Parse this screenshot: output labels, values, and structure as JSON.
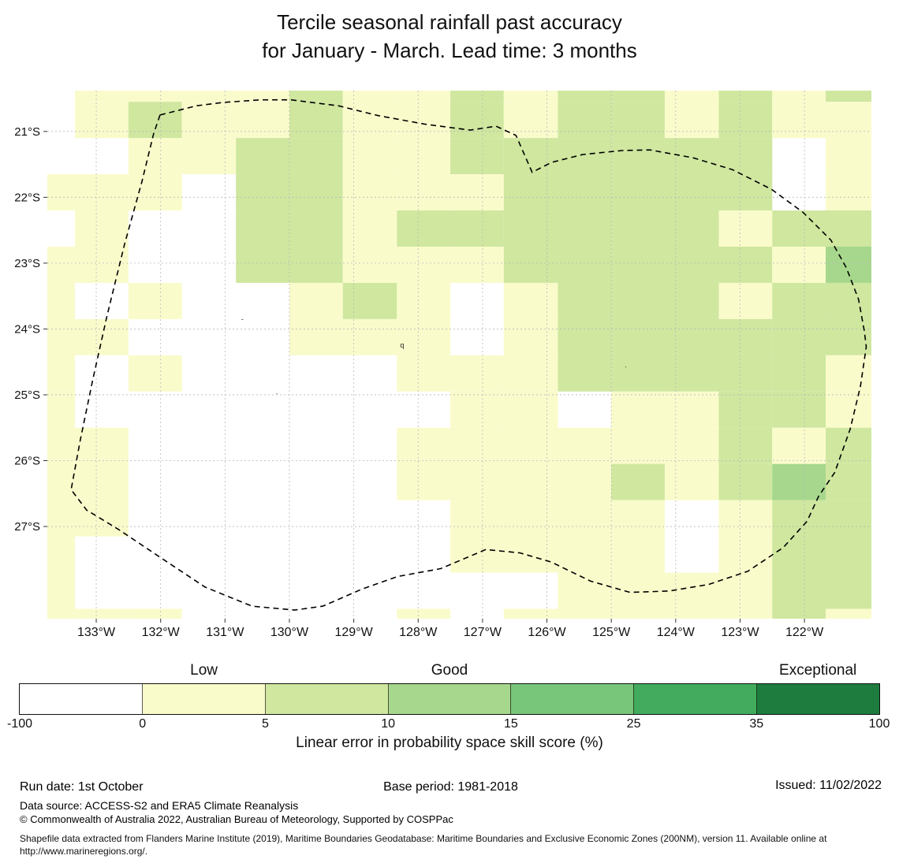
{
  "title": {
    "line1": "Tercile seasonal rainfall past accuracy",
    "line2": "for January - March. Lead time: 3 months"
  },
  "chart_data": {
    "type": "heatmap",
    "title": "Tercile seasonal rainfall past accuracy for January - March. Lead time: 3 months",
    "map": {
      "x_tick_labels": [
        "133°W",
        "132°W",
        "131°W",
        "130°W",
        "129°W",
        "128°W",
        "127°W",
        "126°W",
        "125°W",
        "124°W",
        "123°W",
        "122°W"
      ],
      "y_tick_labels": [
        "21°S",
        "22°S",
        "23°S",
        "24°S",
        "25°S",
        "26°S",
        "27°S"
      ],
      "lon_range_deg_w": [
        133.76,
        120.96
      ],
      "lat_range_deg_s": [
        20.38,
        28.4
      ],
      "grid_on": true,
      "lon_edges_deg_w": [
        133.76,
        133.33,
        132.5,
        131.67,
        130.83,
        130.0,
        129.17,
        128.33,
        127.5,
        126.67,
        125.83,
        125.0,
        124.17,
        123.33,
        122.5,
        121.67,
        120.96
      ],
      "lat_edges_deg_s": [
        20.38,
        20.55,
        21.1,
        21.65,
        22.2,
        22.75,
        23.3,
        23.85,
        24.4,
        24.95,
        25.5,
        26.05,
        26.6,
        27.15,
        27.7,
        28.25,
        28.4
      ],
      "bin_colors": [
        "#ffffff",
        "#fafbcb",
        "#cfe79f",
        "#a6d78c"
      ],
      "bin_meaning": [
        "-100 to 0 %",
        "0 to 5 %",
        "5 to 10 %",
        "10 to 15 %"
      ],
      "cell_bins_rows": [
        "0111121121221212",
        "0121121121221211",
        "0011221122222201",
        "1110221112222201",
        "0100221222222122",
        "1100221112222213",
        "1010012101222122",
        "1100011101222222",
        "1010000111222221",
        "1000000011011221",
        "1100000111111212",
        "1100000111121232",
        "1100000011110122",
        "1000000011110122",
        "1000000000111122",
        "1110000101111121"
      ],
      "eez_boundary_deg": [
        [
          132.01,
          20.75
        ],
        [
          131.44,
          20.61
        ],
        [
          131.03,
          20.56
        ],
        [
          130.46,
          20.52
        ],
        [
          129.97,
          20.52
        ],
        [
          129.24,
          20.61
        ],
        [
          128.62,
          20.76
        ],
        [
          127.89,
          20.89
        ],
        [
          127.19,
          20.98
        ],
        [
          126.79,
          20.92
        ],
        [
          126.48,
          21.06
        ],
        [
          126.23,
          21.62
        ],
        [
          125.93,
          21.47
        ],
        [
          125.44,
          21.35
        ],
        [
          124.83,
          21.29
        ],
        [
          124.4,
          21.28
        ],
        [
          123.73,
          21.4
        ],
        [
          123.12,
          21.58
        ],
        [
          122.51,
          21.88
        ],
        [
          122.02,
          22.23
        ],
        [
          121.59,
          22.65
        ],
        [
          121.35,
          23.07
        ],
        [
          121.16,
          23.55
        ],
        [
          121.07,
          24.03
        ],
        [
          121.04,
          24.27
        ],
        [
          121.13,
          24.87
        ],
        [
          121.29,
          25.52
        ],
        [
          121.53,
          26.18
        ],
        [
          121.78,
          26.54
        ],
        [
          121.96,
          26.92
        ],
        [
          122.33,
          27.32
        ],
        [
          122.88,
          27.68
        ],
        [
          123.49,
          27.88
        ],
        [
          124.1,
          27.98
        ],
        [
          124.71,
          28.0
        ],
        [
          125.32,
          27.83
        ],
        [
          125.93,
          27.54
        ],
        [
          126.42,
          27.4
        ],
        [
          126.95,
          27.35
        ],
        [
          127.65,
          27.64
        ],
        [
          128.32,
          27.76
        ],
        [
          128.87,
          27.95
        ],
        [
          129.48,
          28.21
        ],
        [
          129.92,
          28.27
        ],
        [
          130.58,
          28.21
        ],
        [
          131.31,
          27.92
        ],
        [
          132.05,
          27.44
        ],
        [
          132.66,
          27.04
        ],
        [
          133.15,
          26.75
        ],
        [
          133.39,
          26.44
        ],
        [
          133.25,
          25.7
        ],
        [
          133.05,
          24.75
        ],
        [
          132.83,
          23.79
        ],
        [
          132.56,
          22.71
        ],
        [
          132.29,
          21.76
        ],
        [
          132.11,
          21.04
        ],
        [
          132.01,
          20.75
        ]
      ],
      "stray_marks": [
        {
          "lon_w": 130.75,
          "lat_s": 23.89,
          "glyph": "-"
        },
        {
          "lon_w": 128.28,
          "lat_s": 24.28,
          "glyph": "q"
        },
        {
          "lon_w": 124.79,
          "lat_s": 24.58,
          "glyph": "."
        },
        {
          "lon_w": 130.21,
          "lat_s": 24.99,
          "glyph": "."
        }
      ]
    },
    "colorbar": {
      "label": "Linear error in probability space skill score (%)",
      "tick_labels": [
        "-100",
        "0",
        "5",
        "10",
        "15",
        "25",
        "35",
        "100"
      ],
      "category_labels": [
        {
          "text": "Low",
          "segment_index": 1
        },
        {
          "text": "Good",
          "segment_index": 3
        },
        {
          "text": "Exceptional",
          "segment_index": 6
        }
      ],
      "segments": [
        {
          "range": "-100 to 0",
          "color": "#ffffff"
        },
        {
          "range": "0 to 5",
          "color": "#fafbcb"
        },
        {
          "range": "5 to 10",
          "color": "#cfe79f"
        },
        {
          "range": "10 to 15",
          "color": "#a6d78c"
        },
        {
          "range": "15 to 25",
          "color": "#78c679"
        },
        {
          "range": "25 to 35",
          "color": "#42ab5d"
        },
        {
          "range": "35 to 100",
          "color": "#1d7c3e"
        }
      ]
    }
  },
  "footer": {
    "run_date": "Run date: 1st October",
    "base_period": "Base period: 1981-2018",
    "issued": "Issued: 11/02/2022",
    "data_source": "Data source: ACCESS-S2 and ERA5 Climate Reanalysis",
    "copyright": "© Commonwealth of Australia 2022, Australian Bureau of Meteorology, Supported by COSPPac",
    "shapefile_note": "Shapefile data extracted from Flanders Marine Institute (2019), Maritime Boundaries Geodatabase: Maritime Boundaries and Exclusive Economic Zones (200NM), version 11. Available online at http://www.marineregions.org/."
  }
}
